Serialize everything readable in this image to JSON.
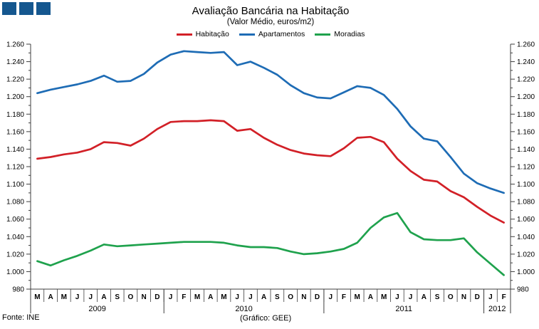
{
  "header": {
    "title": "Avaliação Bancária na Habitação",
    "subtitle": "(Valor Médio, euros/m2)"
  },
  "logo": {
    "name": "gee-logo-squares",
    "count": 3,
    "color": "#15578f"
  },
  "footer": {
    "source": "Fonte: INE",
    "credit": "(Gráfico: GEE)"
  },
  "chart_data": {
    "type": "line",
    "title": "Avaliação Bancária na Habitação",
    "subtitle": "(Valor Médio, euros/m2)",
    "unit": "euros/m2",
    "grid": false,
    "legend_position": "top",
    "ylim": [
      980,
      1260
    ],
    "y_minor_step": 10,
    "y_ticks": [
      {
        "label": "1.260",
        "value": 1260
      },
      {
        "label": "1.240",
        "value": 1240
      },
      {
        "label": "1.220",
        "value": 1220
      },
      {
        "label": "1.200",
        "value": 1200
      },
      {
        "label": "1.180",
        "value": 1180
      },
      {
        "label": "1.160",
        "value": 1160
      },
      {
        "label": "1.140",
        "value": 1140
      },
      {
        "label": "1.120",
        "value": 1120
      },
      {
        "label": "1.100",
        "value": 1100
      },
      {
        "label": "1.080",
        "value": 1080
      },
      {
        "label": "1.060",
        "value": 1060
      },
      {
        "label": "1.040",
        "value": 1040
      },
      {
        "label": "1.020",
        "value": 1020
      },
      {
        "label": "1.000",
        "value": 1000
      },
      {
        "label": "980",
        "value": 980
      }
    ],
    "x_months": [
      "M",
      "A",
      "M",
      "J",
      "J",
      "A",
      "S",
      "O",
      "N",
      "D",
      "J",
      "F",
      "M",
      "A",
      "M",
      "J",
      "J",
      "A",
      "S",
      "O",
      "N",
      "D",
      "J",
      "F",
      "M",
      "A",
      "M",
      "J",
      "J",
      "A",
      "S",
      "O",
      "N",
      "D",
      "J",
      "F"
    ],
    "years": [
      {
        "label": "2009",
        "months": 10
      },
      {
        "label": "2010",
        "months": 12
      },
      {
        "label": "2011",
        "months": 12
      },
      {
        "label": "2012",
        "months": 2
      }
    ],
    "series": [
      {
        "name": "Habitação",
        "color": "#d22027",
        "values": [
          1129,
          1131,
          1134,
          1136,
          1140,
          1148,
          1147,
          1144,
          1152,
          1163,
          1171,
          1172,
          1172,
          1173,
          1172,
          1161,
          1163,
          1153,
          1145,
          1139,
          1135,
          1133,
          1132,
          1141,
          1153,
          1154,
          1148,
          1129,
          1115,
          1105,
          1103,
          1092,
          1085,
          1074,
          1064,
          1056
        ]
      },
      {
        "name": "Apartamentos",
        "color": "#1e6cb5",
        "values": [
          1204,
          1208,
          1211,
          1214,
          1218,
          1224,
          1217,
          1218,
          1226,
          1239,
          1248,
          1252,
          1251,
          1250,
          1251,
          1236,
          1240,
          1233,
          1225,
          1213,
          1204,
          1199,
          1198,
          1205,
          1212,
          1210,
          1202,
          1186,
          1166,
          1152,
          1149,
          1131,
          1112,
          1101,
          1095,
          1090
        ]
      },
      {
        "name": "Moradias",
        "color": "#1fa24d",
        "values": [
          1012,
          1007,
          1013,
          1018,
          1024,
          1031,
          1029,
          1030,
          1031,
          1032,
          1033,
          1034,
          1034,
          1034,
          1033,
          1030,
          1028,
          1028,
          1027,
          1023,
          1020,
          1021,
          1023,
          1026,
          1033,
          1050,
          1062,
          1067,
          1045,
          1037,
          1036,
          1036,
          1038,
          1022,
          1009,
          996
        ]
      }
    ]
  }
}
